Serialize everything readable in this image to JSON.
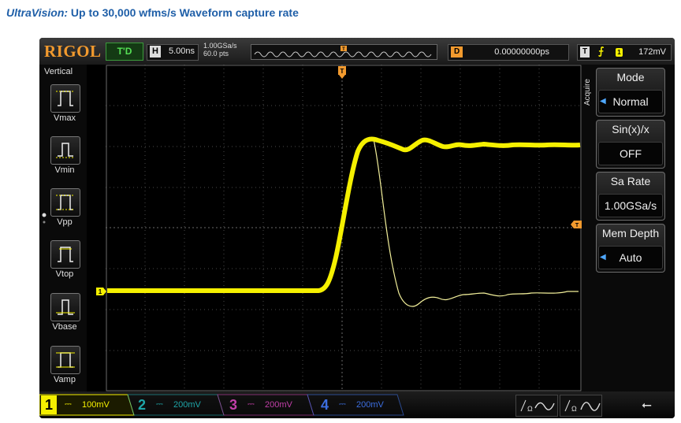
{
  "caption": {
    "lead": "UltraVision:",
    "rest": " Up to 30,000 wfms/s Waveform capture rate"
  },
  "topbar": {
    "brand": "RIGOL",
    "run_state": "T'D",
    "horizontal_key": "H",
    "timebase": "5.00ns",
    "sample_rate": "1.00GSa/s",
    "memory_points": "60.0 pts",
    "delay_key": "D",
    "delay_value": "0.00000000ps",
    "trigger_key": "T",
    "trigger_source": "1",
    "trigger_level": "172mV"
  },
  "left_panel": {
    "title": "Vertical",
    "measurements": [
      "Vmax",
      "Vmin",
      "Vpp",
      "Vtop",
      "Vbase",
      "Vamp"
    ]
  },
  "right_menu": {
    "section": "Acquire",
    "items": [
      {
        "title": "Mode",
        "value": "Normal",
        "has_arrow": true
      },
      {
        "title": "Sin(x)/x",
        "value": "OFF",
        "has_arrow": false
      },
      {
        "title": "Sa Rate",
        "value": "1.00GSa/s",
        "has_arrow": false
      },
      {
        "title": "Mem Depth",
        "value": "Auto",
        "has_arrow": true
      }
    ]
  },
  "channels": [
    {
      "num": "1",
      "scale": "100mV",
      "color": "#f5f000",
      "active": true
    },
    {
      "num": "2",
      "scale": "200mV",
      "color": "#1ea5a8",
      "active": false
    },
    {
      "num": "3",
      "scale": "200mV",
      "color": "#c23fa8",
      "active": false
    },
    {
      "num": "4",
      "scale": "200mV",
      "color": "#3c6ee0",
      "active": false
    }
  ],
  "markers": {
    "trigger_pos": "T",
    "trigger_level": "T",
    "ch1_ground": "1"
  },
  "colors": {
    "brand": "#f29a2e",
    "ch1": "#f5f000",
    "grid": "#5a5a5a",
    "accent": "#4fa8ff"
  }
}
